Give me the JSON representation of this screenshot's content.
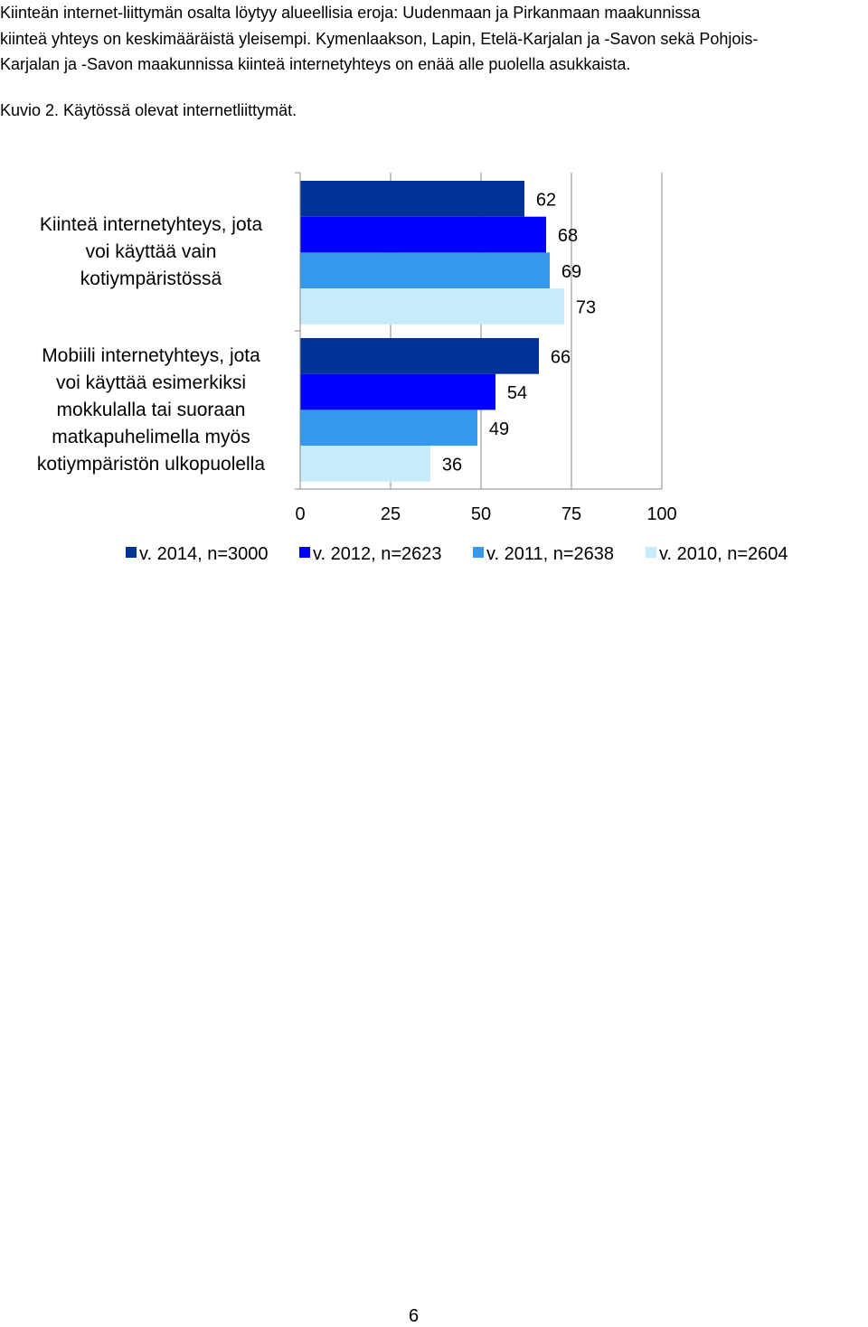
{
  "document": {
    "paragraph_lines": [
      "Kiinteän internet-liittymän osalta löytyy alueellisia eroja: Uudenmaan ja Pirkanmaan maakunnissa",
      "kiinteä yhteys on keskimääräistä yleisempi. Kymenlaakson, Lapin, Etelä-Karjalan ja -Savon sekä Pohjois-",
      "Karjalan ja -Savon maakunnissa kiinteä internetyhteys on enää alle puolella asukkaista."
    ],
    "figure_caption": "Kuvio 2. Käytössä olevat internetliittymät.",
    "page_number": "6"
  },
  "chart_data": {
    "type": "bar",
    "orientation": "horizontal",
    "categories": [
      {
        "label": "Kiinteä internetyhteys, jota voi käyttää vain kotiympäristössä",
        "lines": [
          "Kiinteä internetyhteys, jota",
          "voi käyttää vain",
          "kotiympäristössä"
        ]
      },
      {
        "label": "Mobiili internetyhteys, jota voi käyttää esimerkiksi mokkulalla tai suoraan matkapuhelimella myös kotiympäristön ulkopuolella",
        "lines": [
          "Mobiili internetyhteys, jota",
          "voi käyttää esimerkiksi",
          "mokkulalla tai suoraan",
          "matkapuhelimella myös",
          "kotiympäristön ulkopuolella"
        ]
      }
    ],
    "series": [
      {
        "name": "v. 2014, n=3000",
        "color": "#003399",
        "values": [
          62,
          66
        ]
      },
      {
        "name": "v. 2012, n=2623",
        "color": "#0000FF",
        "values": [
          68,
          54
        ]
      },
      {
        "name": "v. 2011, n=2638",
        "color": "#3399EE",
        "values": [
          69,
          49
        ]
      },
      {
        "name": "v. 2010, n=2604",
        "color": "#C6ECFB",
        "values": [
          73,
          36
        ]
      }
    ],
    "xlim": [
      0,
      100
    ],
    "xticks": [
      "0",
      "25",
      "50",
      "75",
      "100"
    ],
    "grid": "vertical",
    "legend_position": "bottom",
    "data_labels": true
  }
}
